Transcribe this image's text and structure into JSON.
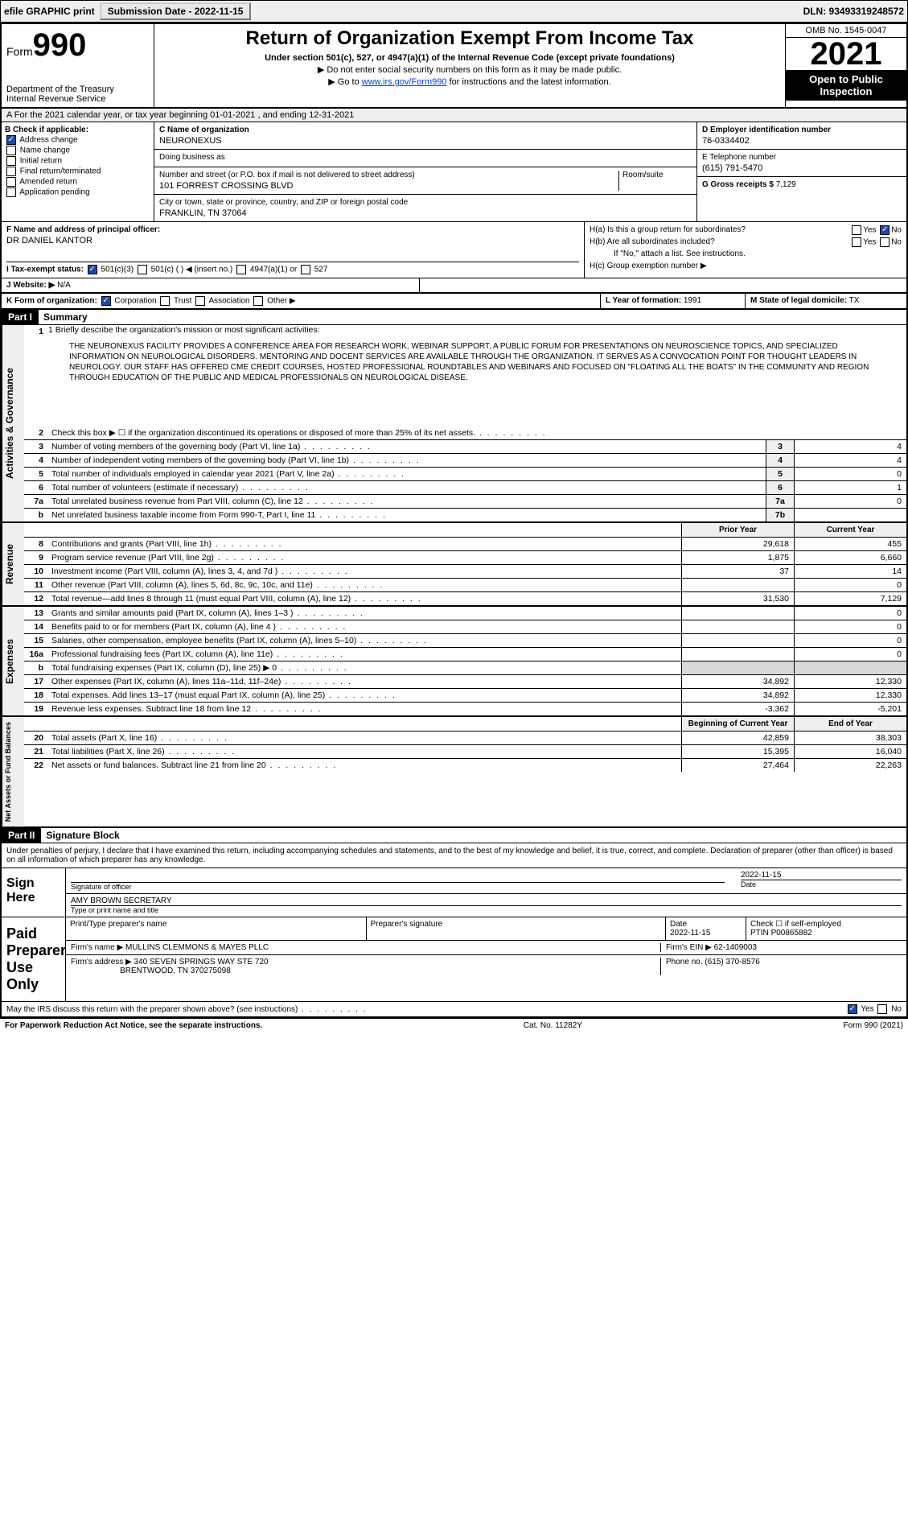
{
  "topbar": {
    "efile": "efile GRAPHIC print",
    "submission_label": "Submission Date - 2022-11-15",
    "dln": "DLN: 93493319248572"
  },
  "header": {
    "form_word": "Form",
    "form_num": "990",
    "dept": "Department of the Treasury",
    "irs": "Internal Revenue Service",
    "title": "Return of Organization Exempt From Income Tax",
    "sub": "Under section 501(c), 527, or 4947(a)(1) of the Internal Revenue Code (except private foundations)",
    "note1": "▶ Do not enter social security numbers on this form as it may be made public.",
    "note2_pre": "▶ Go to ",
    "note2_link": "www.irs.gov/Form990",
    "note2_post": " for instructions and the latest information.",
    "omb": "OMB No. 1545-0047",
    "year": "2021",
    "open": "Open to Public Inspection"
  },
  "A": {
    "text": "A For the 2021 calendar year, or tax year beginning 01-01-2021   , and ending 12-31-2021"
  },
  "B": {
    "title": "B Check if applicable:",
    "opts": [
      "Address change",
      "Name change",
      "Initial return",
      "Final return/terminated",
      "Amended return",
      "Application pending"
    ],
    "checked": "Address change"
  },
  "C": {
    "name_lbl": "C Name of organization",
    "name": "NEURONEXUS",
    "dba_lbl": "Doing business as",
    "dba": "",
    "addr_lbl": "Number and street (or P.O. box if mail is not delivered to street address)",
    "room_lbl": "Room/suite",
    "addr": "101 FORREST CROSSING BLVD",
    "city_lbl": "City or town, state or province, country, and ZIP or foreign postal code",
    "city": "FRANKLIN, TN  37064"
  },
  "D": {
    "lbl": "D Employer identification number",
    "val": "76-0334402"
  },
  "E": {
    "lbl": "E Telephone number",
    "val": "(615) 791-5470"
  },
  "G": {
    "lbl": "G Gross receipts $",
    "val": "7,129"
  },
  "F": {
    "lbl": "F Name and address of principal officer:",
    "val": "DR DANIEL KANTOR"
  },
  "H": {
    "a": "H(a)  Is this a group return for subordinates?",
    "b": "H(b)  Are all subordinates included?",
    "note": "If \"No,\" attach a list. See instructions.",
    "c": "H(c)  Group exemption number ▶",
    "yes": "Yes",
    "no": "No"
  },
  "I": {
    "lbl": "I  Tax-exempt status:",
    "o1": "501(c)(3)",
    "o2": "501(c) (  ) ◀ (insert no.)",
    "o3": "4947(a)(1) or",
    "o4": "527"
  },
  "J": {
    "lbl": "J  Website: ▶",
    "val": "N/A"
  },
  "K": {
    "lbl": "K Form of organization:",
    "o1": "Corporation",
    "o2": "Trust",
    "o3": "Association",
    "o4": "Other ▶"
  },
  "L": {
    "lbl": "L Year of formation:",
    "val": "1991"
  },
  "M": {
    "lbl": "M State of legal domicile:",
    "val": "TX"
  },
  "part1": {
    "hdr": "Part I",
    "title": "Summary"
  },
  "mission": {
    "lbl": "1   Briefly describe the organization's mission or most significant activities:",
    "text": "THE NEURONEXUS FACILITY PROVIDES A CONFERENCE AREA FOR RESEARCH WORK, WEBINAR SUPPORT, A PUBLIC FORUM FOR PRESENTATIONS ON NEUROSCIENCE TOPICS, AND SPECIALIZED INFORMATION ON NEUROLOGICAL DISORDERS. MENTORING AND DOCENT SERVICES ARE AVAILABLE THROUGH THE ORGANIZATION. IT SERVES AS A CONVOCATION POINT FOR THOUGHT LEADERS IN NEUROLOGY. OUR STAFF HAS OFFERED CME CREDIT COURSES, HOSTED PROFESSIONAL ROUNDTABLES AND WEBINARS AND FOCUSED ON \"FLOATING ALL THE BOATS\" IN THE COMMUNITY AND REGION THROUGH EDUCATION OF THE PUBLIC AND MEDICAL PROFESSIONALS ON NEUROLOGICAL DISEASE."
  },
  "gov_lines": [
    {
      "n": "2",
      "d": "Check this box ▶ ☐ if the organization discontinued its operations or disposed of more than 25% of its net assets.",
      "box": "",
      "v": ""
    },
    {
      "n": "3",
      "d": "Number of voting members of the governing body (Part VI, line 1a)",
      "box": "3",
      "v": "4"
    },
    {
      "n": "4",
      "d": "Number of independent voting members of the governing body (Part VI, line 1b)",
      "box": "4",
      "v": "4"
    },
    {
      "n": "5",
      "d": "Total number of individuals employed in calendar year 2021 (Part V, line 2a)",
      "box": "5",
      "v": "0"
    },
    {
      "n": "6",
      "d": "Total number of volunteers (estimate if necessary)",
      "box": "6",
      "v": "1"
    },
    {
      "n": "7a",
      "d": "Total unrelated business revenue from Part VIII, column (C), line 12",
      "box": "7a",
      "v": "0"
    },
    {
      "n": "b",
      "d": "Net unrelated business taxable income from Form 990-T, Part I, line 11",
      "box": "7b",
      "v": ""
    }
  ],
  "col_hdrs": {
    "prior": "Prior Year",
    "current": "Current Year",
    "boy": "Beginning of Current Year",
    "eoy": "End of Year"
  },
  "rev_lines": [
    {
      "n": "8",
      "d": "Contributions and grants (Part VIII, line 1h)",
      "p": "29,618",
      "c": "455"
    },
    {
      "n": "9",
      "d": "Program service revenue (Part VIII, line 2g)",
      "p": "1,875",
      "c": "6,660"
    },
    {
      "n": "10",
      "d": "Investment income (Part VIII, column (A), lines 3, 4, and 7d )",
      "p": "37",
      "c": "14"
    },
    {
      "n": "11",
      "d": "Other revenue (Part VIII, column (A), lines 5, 6d, 8c, 9c, 10c, and 11e)",
      "p": "",
      "c": "0"
    },
    {
      "n": "12",
      "d": "Total revenue—add lines 8 through 11 (must equal Part VIII, column (A), line 12)",
      "p": "31,530",
      "c": "7,129"
    }
  ],
  "exp_lines": [
    {
      "n": "13",
      "d": "Grants and similar amounts paid (Part IX, column (A), lines 1–3 )",
      "p": "",
      "c": "0"
    },
    {
      "n": "14",
      "d": "Benefits paid to or for members (Part IX, column (A), line 4 )",
      "p": "",
      "c": "0"
    },
    {
      "n": "15",
      "d": "Salaries, other compensation, employee benefits (Part IX, column (A), lines 5–10)",
      "p": "",
      "c": "0"
    },
    {
      "n": "16a",
      "d": "Professional fundraising fees (Part IX, column (A), line 11e)",
      "p": "",
      "c": "0"
    },
    {
      "n": "b",
      "d": "Total fundraising expenses (Part IX, column (D), line 25) ▶ 0",
      "p": "shade",
      "c": "shade"
    },
    {
      "n": "17",
      "d": "Other expenses (Part IX, column (A), lines 11a–11d, 11f–24e)",
      "p": "34,892",
      "c": "12,330"
    },
    {
      "n": "18",
      "d": "Total expenses. Add lines 13–17 (must equal Part IX, column (A), line 25)",
      "p": "34,892",
      "c": "12,330"
    },
    {
      "n": "19",
      "d": "Revenue less expenses. Subtract line 18 from line 12",
      "p": "-3,362",
      "c": "-5,201"
    }
  ],
  "na_lines": [
    {
      "n": "20",
      "d": "Total assets (Part X, line 16)",
      "p": "42,859",
      "c": "38,303"
    },
    {
      "n": "21",
      "d": "Total liabilities (Part X, line 26)",
      "p": "15,395",
      "c": "16,040"
    },
    {
      "n": "22",
      "d": "Net assets or fund balances. Subtract line 21 from line 20",
      "p": "27,464",
      "c": "22,263"
    }
  ],
  "part2": {
    "hdr": "Part II",
    "title": "Signature Block"
  },
  "penalties": "Under penalties of perjury, I declare that I have examined this return, including accompanying schedules and statements, and to the best of my knowledge and belief, it is true, correct, and complete. Declaration of preparer (other than officer) is based on all information of which preparer has any knowledge.",
  "sign": {
    "lbl": "Sign Here",
    "sig_lbl": "Signature of officer",
    "date_lbl": "Date",
    "date": "2022-11-15",
    "name": "AMY BROWN SECRETARY",
    "name_lbl": "Type or print name and title"
  },
  "paid": {
    "lbl": "Paid Preparer Use Only",
    "h1": "Print/Type preparer's name",
    "h2": "Preparer's signature",
    "h3": "Date",
    "date": "2022-11-15",
    "h4_chk": "Check ☐ if self-employed",
    "h4_ptin": "PTIN",
    "ptin": "P00865882",
    "firm_name_lbl": "Firm's name    ▶",
    "firm_name": "MULLINS CLEMMONS & MAYES PLLC",
    "firm_ein_lbl": "Firm's EIN ▶",
    "firm_ein": "62-1409003",
    "firm_addr_lbl": "Firm's address ▶",
    "firm_addr": "340 SEVEN SPRINGS WAY STE 720",
    "firm_city": "BRENTWOOD, TN  370275098",
    "phone_lbl": "Phone no.",
    "phone": "(615) 370-8576"
  },
  "discuss": {
    "q": "May the IRS discuss this return with the preparer shown above? (see instructions)",
    "yes": "Yes",
    "no": "No"
  },
  "footer": {
    "left": "For Paperwork Reduction Act Notice, see the separate instructions.",
    "mid": "Cat. No. 11282Y",
    "right": "Form 990 (2021)"
  },
  "vtabs": {
    "gov": "Activities & Governance",
    "rev": "Revenue",
    "exp": "Expenses",
    "na": "Net Assets or Fund Balances"
  }
}
